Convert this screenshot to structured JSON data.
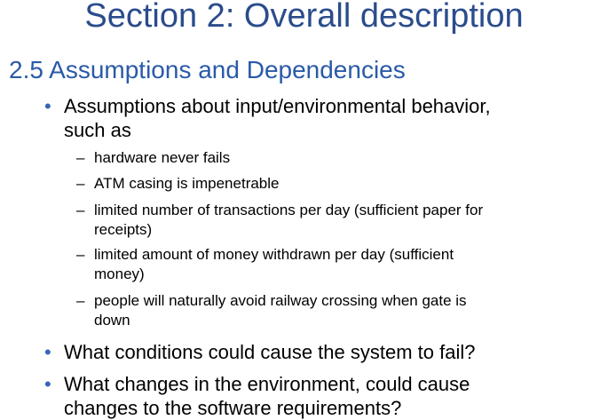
{
  "title": "Section 2: Overall description",
  "section_heading": "2.5 Assumptions and Dependencies",
  "bullet_symbol": "•",
  "dash_symbol": "–",
  "bullets": [
    {
      "line1": "Assumptions about input/environmental behavior,",
      "line2": "such as"
    },
    {
      "line1": "What conditions could cause the system to fail?"
    },
    {
      "line1": "What changes in the environment, could cause",
      "line2": "changes to the software requirements?"
    }
  ],
  "sub_items": [
    {
      "line1": "hardware never fails"
    },
    {
      "line1": "ATM casing is impenetrable"
    },
    {
      "line1": "limited number of transactions per day (sufficient paper for",
      "line2": "receipts)"
    },
    {
      "line1": "limited amount of money withdrawn per day (sufficient",
      "line2": "money)"
    },
    {
      "line1": "people will naturally avoid railway crossing when gate is",
      "line2": "down"
    }
  ],
  "colors": {
    "title": "#2a4c8c",
    "heading": "#2a5aa8",
    "bullet": "#3566b8"
  }
}
